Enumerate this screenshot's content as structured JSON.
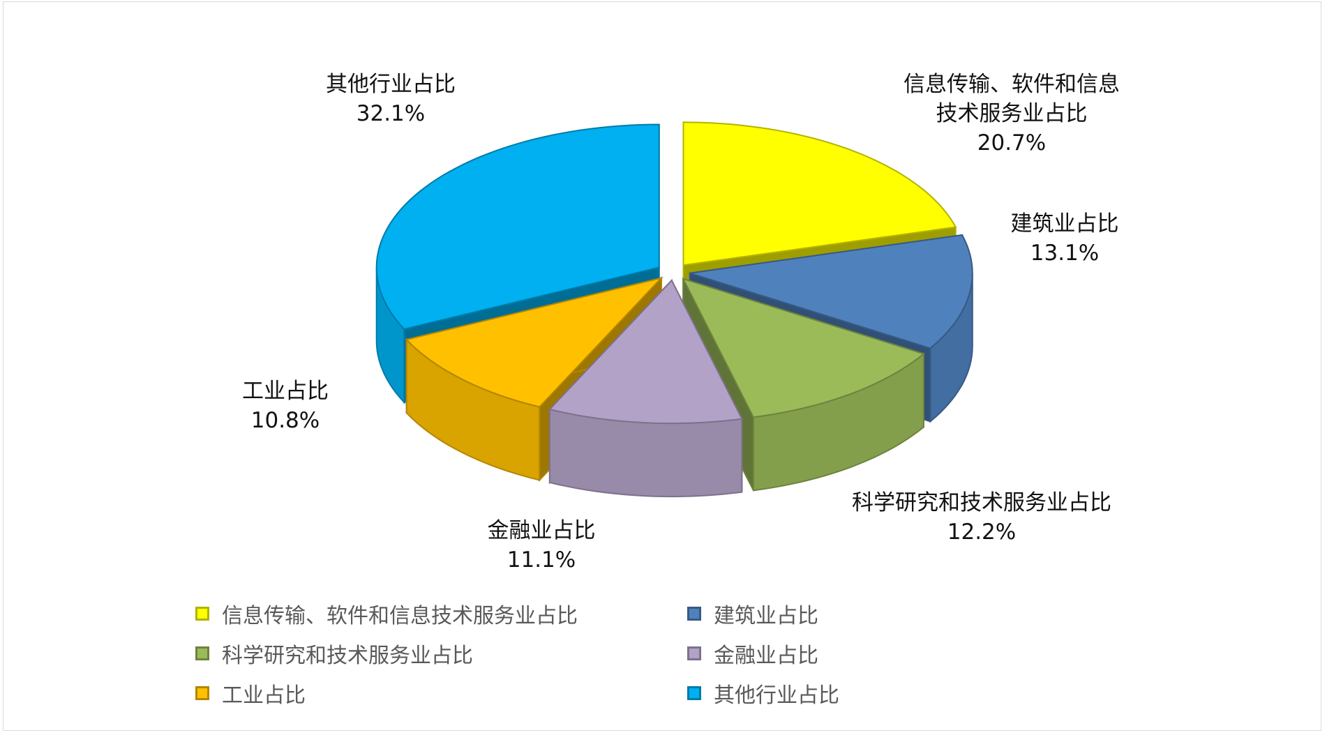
{
  "chart_data": {
    "type": "pie",
    "categories": [
      "信息传输、软件和信息技术服务业占比",
      "建筑业占比",
      "科学研究和技术服务业占比",
      "金融业占比",
      "工业占比",
      "其他行业占比"
    ],
    "values": [
      20.7,
      13.1,
      12.2,
      11.1,
      10.8,
      32.1
    ],
    "value_labels": [
      "20.7%",
      "13.1%",
      "12.2%",
      "11.1%",
      "10.8%",
      "32.1%"
    ],
    "colors": [
      "#ffff00",
      "#4f81bd",
      "#9bbb59",
      "#b3a2c7",
      "#ffc000",
      "#00b0f0"
    ],
    "legend": "bottom"
  }
}
